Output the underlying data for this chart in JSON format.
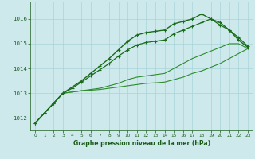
{
  "xlabel": "Graphe pression niveau de la mer (hPa)",
  "background_color": "#cde9ec",
  "grid_color": "#a8d4d8",
  "ylim": [
    1011.5,
    1016.7
  ],
  "xlim": [
    -0.5,
    23.5
  ],
  "yticks": [
    1012,
    1013,
    1014,
    1015,
    1016
  ],
  "xticks": [
    0,
    1,
    2,
    3,
    4,
    5,
    6,
    7,
    8,
    9,
    10,
    11,
    12,
    13,
    14,
    15,
    16,
    17,
    18,
    19,
    20,
    21,
    22,
    23
  ],
  "series": [
    {
      "data": [
        1011.8,
        1012.2,
        1012.6,
        1013.0,
        1013.25,
        1013.5,
        1013.8,
        1014.1,
        1014.4,
        1014.75,
        1015.1,
        1015.35,
        1015.45,
        1015.5,
        1015.55,
        1015.8,
        1015.9,
        1016.0,
        1016.2,
        1016.0,
        1015.85,
        1015.55,
        1015.15,
        1014.85
      ],
      "color": "#1a6b1a",
      "lw": 1.0,
      "marker": "+",
      "ms": 3.5,
      "zorder": 5
    },
    {
      "data": [
        1011.8,
        1012.2,
        1012.6,
        1013.0,
        1013.2,
        1013.45,
        1013.7,
        1013.95,
        1014.2,
        1014.5,
        1014.75,
        1014.95,
        1015.05,
        1015.1,
        1015.15,
        1015.4,
        1015.55,
        1015.7,
        1015.85,
        1016.0,
        1015.75,
        1015.55,
        1015.25,
        1014.9
      ],
      "color": "#1a6b1a",
      "lw": 0.9,
      "marker": "+",
      "ms": 3.0,
      "zorder": 4
    },
    {
      "data": [
        1011.8,
        1012.2,
        1012.6,
        1013.0,
        1013.05,
        1013.1,
        1013.15,
        1013.2,
        1013.3,
        1013.4,
        1013.55,
        1013.65,
        1013.7,
        1013.75,
        1013.8,
        1014.0,
        1014.2,
        1014.4,
        1014.55,
        1014.7,
        1014.85,
        1015.0,
        1015.0,
        1014.8
      ],
      "color": "#2d8b2d",
      "lw": 0.8,
      "marker": null,
      "ms": 0,
      "zorder": 3
    },
    {
      "data": [
        1011.8,
        1012.2,
        1012.6,
        1013.0,
        1013.05,
        1013.1,
        1013.12,
        1013.15,
        1013.2,
        1013.25,
        1013.3,
        1013.35,
        1013.4,
        1013.42,
        1013.45,
        1013.55,
        1013.65,
        1013.8,
        1013.9,
        1014.05,
        1014.2,
        1014.4,
        1014.6,
        1014.8
      ],
      "color": "#2d8b2d",
      "lw": 0.8,
      "marker": null,
      "ms": 0,
      "zorder": 2
    }
  ]
}
